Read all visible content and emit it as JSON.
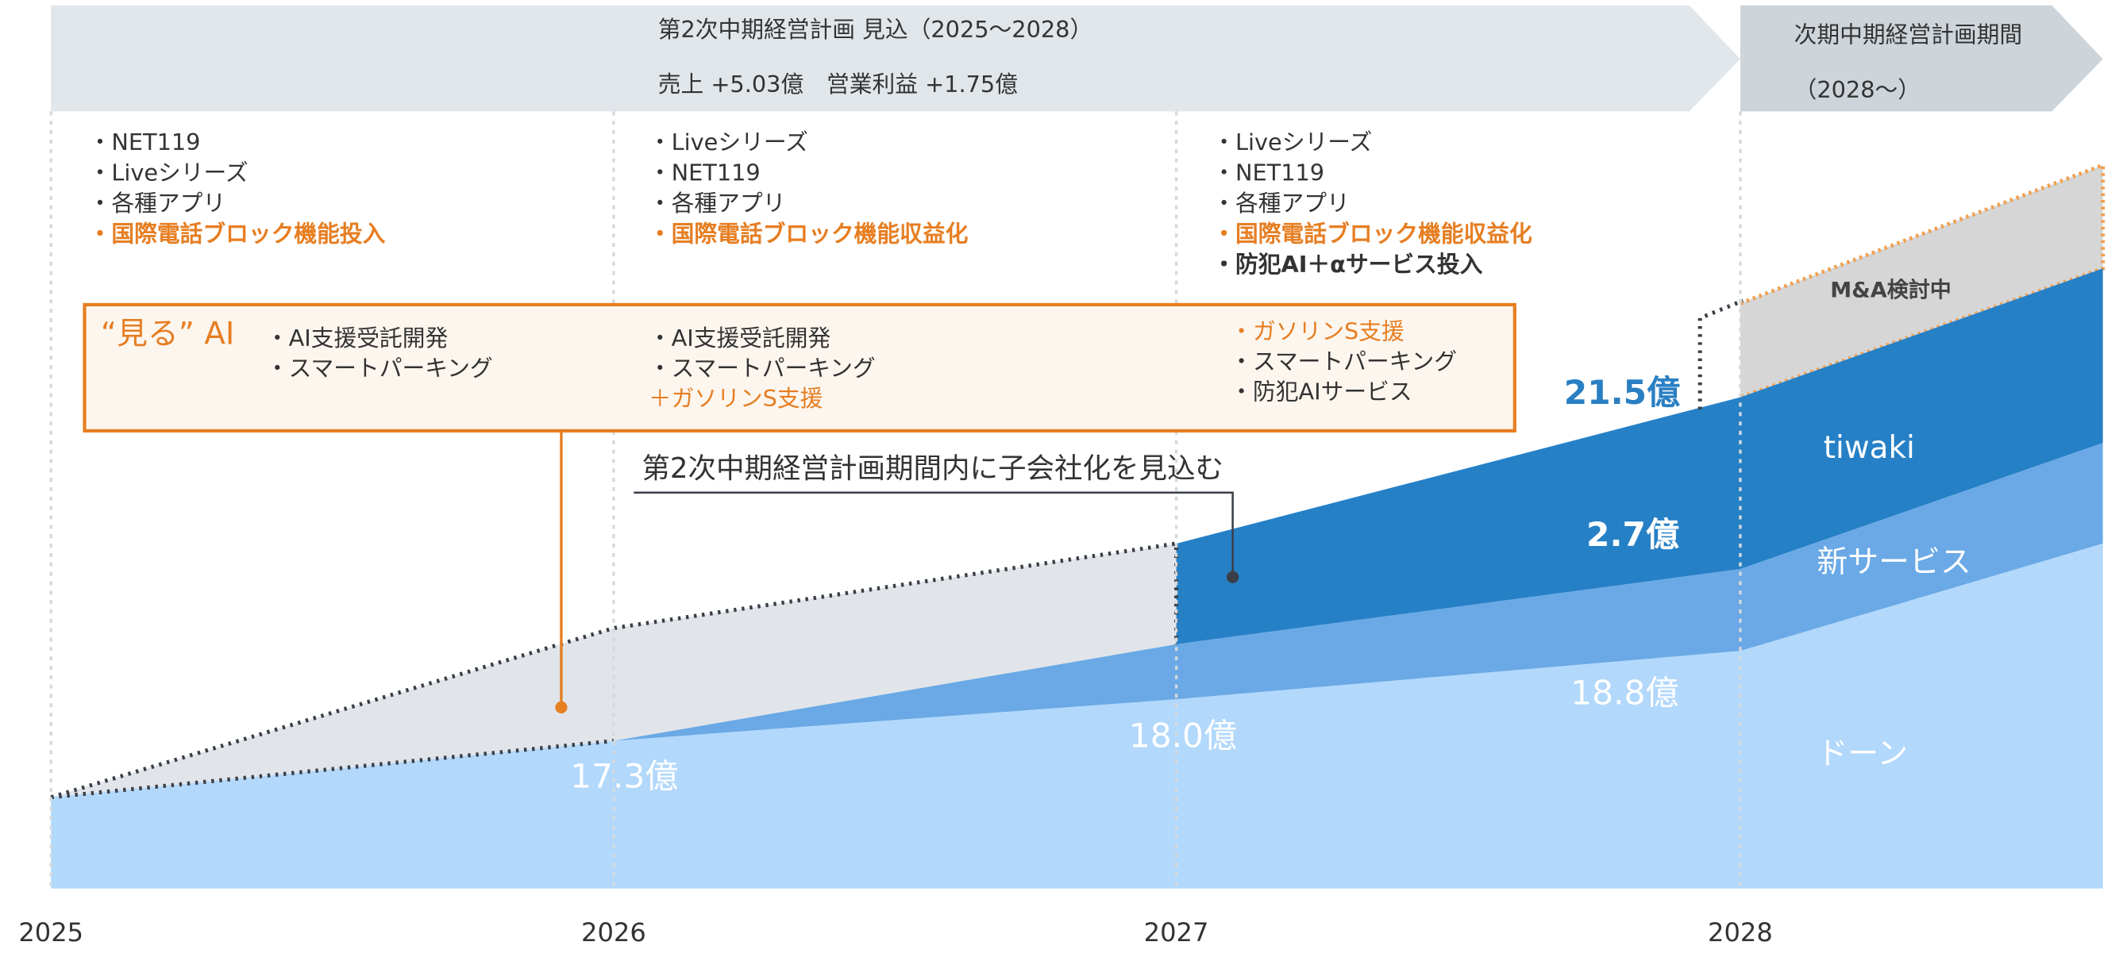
{
  "banner": {
    "title": "第2次中期経営計画 見込（2025〜2028）",
    "subtitle": "売上 +5.03億　営業利益 +1.75億",
    "next_title": "次期中期経営計画期間",
    "next_period": "（2028〜）"
  },
  "years": [
    "2025",
    "2026",
    "2027",
    "2028"
  ],
  "columns": [
    {
      "items": [
        {
          "text": "・NET119"
        },
        {
          "text": "・Liveシリーズ"
        },
        {
          "text": "・各種アプリ"
        },
        {
          "text": "・国際電話ブロック機能投入",
          "emphasis": "orange"
        }
      ]
    },
    {
      "items": [
        {
          "text": "・Liveシリーズ"
        },
        {
          "text": "・NET119"
        },
        {
          "text": "・各種アプリ"
        },
        {
          "text": "・国際電話ブロック機能収益化",
          "emphasis": "orange"
        }
      ]
    },
    {
      "items": [
        {
          "text": "・Liveシリーズ"
        },
        {
          "text": "・NET119"
        },
        {
          "text": "・各種アプリ"
        },
        {
          "text": "・国際電話ブロック機能収益化",
          "emphasis": "orange"
        },
        {
          "text": "・防犯AI＋αサービス投入",
          "emphasis": "bold"
        }
      ]
    }
  ],
  "ai_box": {
    "label": "“見る” AI",
    "columns": [
      [
        {
          "text": "・AI支援受託開発"
        },
        {
          "text": "・スマートパーキング"
        }
      ],
      [
        {
          "text": "・AI支援受託開発"
        },
        {
          "text": "・スマートパーキング"
        },
        {
          "text": "＋ガソリンS支援",
          "emphasis": "orange-plain"
        }
      ],
      [
        {
          "text": "・ガソリンS支援",
          "emphasis": "orange-plain"
        },
        {
          "text": "・スマートパーキング"
        },
        {
          "text": "・防犯AIサービス"
        }
      ]
    ]
  },
  "subsidiary_note": "第2次中期経営計画期間内に子会社化を見込む",
  "value_labels": [
    "17.3億",
    "18.0億",
    "18.8億",
    "2.7億",
    "21.5億"
  ],
  "layers": [
    "M&A検討中",
    "tiwaki",
    "新サービス",
    "ドーン"
  ]
}
